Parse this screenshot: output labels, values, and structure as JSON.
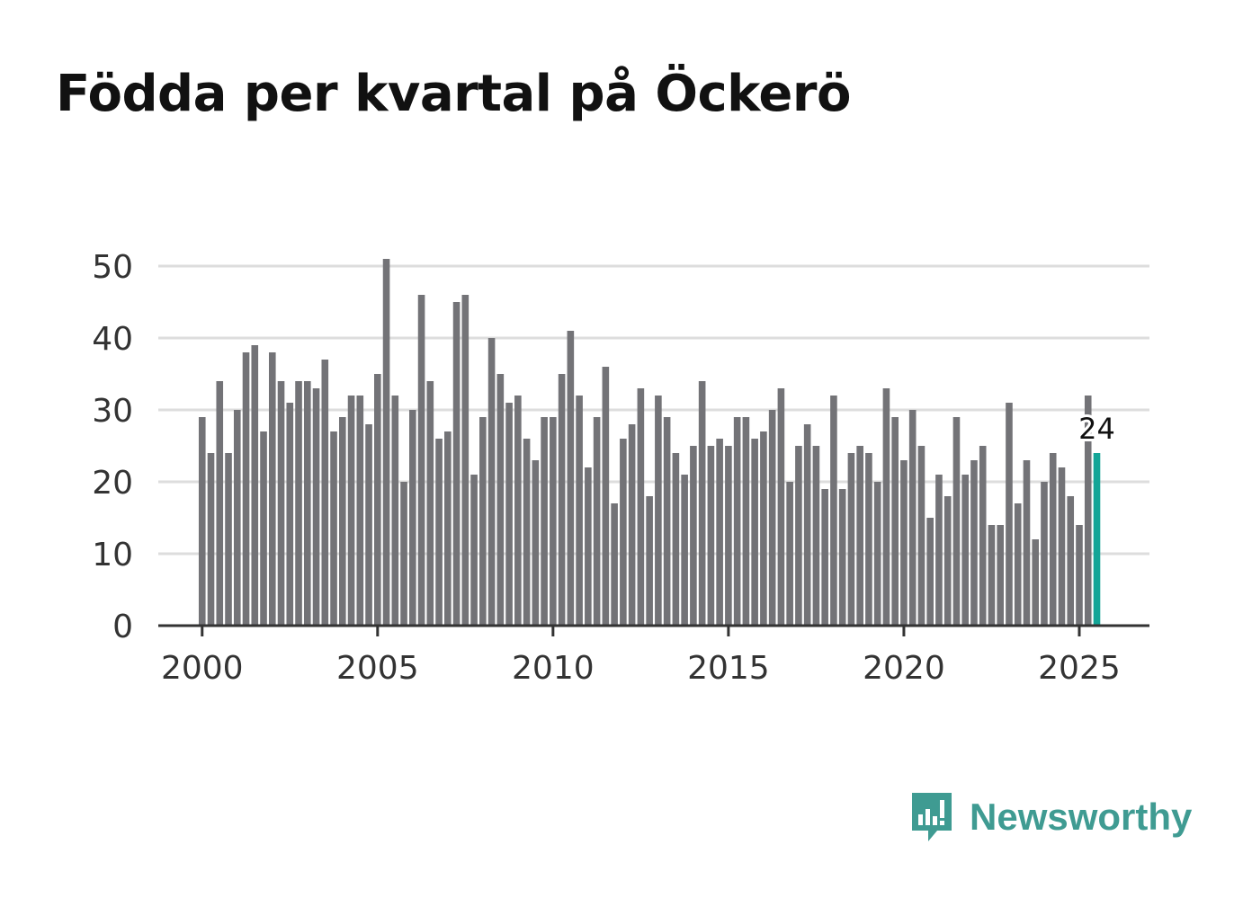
{
  "title": "Födda per kvartal på Öckerö",
  "brand": {
    "name": "Newsworthy",
    "color": "#3f9b92"
  },
  "colors": {
    "bar": "#737377",
    "highlight": "#13a597",
    "grid": "#dddddd",
    "axis": "#333333",
    "text": "#333333"
  },
  "chart_data": {
    "type": "bar",
    "title": "Födda per kvartal på Öckerö",
    "xlabel": "",
    "ylabel": "",
    "ylim": [
      0,
      50
    ],
    "yticks": [
      "0",
      "10",
      "20",
      "30",
      "40",
      "50"
    ],
    "xticks": [
      "2000",
      "2005",
      "2010",
      "2015",
      "2020",
      "2025"
    ],
    "xrange": [
      1998.75,
      2027.0
    ],
    "grid": true,
    "start_year": 2000,
    "quarters_per_year": 4,
    "values": [
      29,
      24,
      34,
      24,
      30,
      38,
      39,
      27,
      38,
      34,
      31,
      34,
      34,
      33,
      37,
      27,
      29,
      32,
      32,
      28,
      35,
      51,
      32,
      20,
      30,
      46,
      34,
      26,
      27,
      45,
      46,
      21,
      29,
      40,
      35,
      31,
      32,
      26,
      23,
      29,
      29,
      35,
      41,
      32,
      22,
      29,
      36,
      17,
      26,
      28,
      33,
      18,
      32,
      29,
      24,
      21,
      25,
      34,
      25,
      26,
      25,
      29,
      29,
      26,
      27,
      30,
      33,
      20,
      25,
      28,
      25,
      19,
      32,
      19,
      24,
      25,
      24,
      20,
      33,
      29,
      23,
      30,
      25,
      15,
      21,
      18,
      29,
      21,
      23,
      25,
      14,
      14,
      31,
      17,
      23,
      12,
      20,
      24,
      22,
      18,
      14,
      32,
      24
    ],
    "highlight": {
      "index": 102,
      "label": "24"
    }
  }
}
